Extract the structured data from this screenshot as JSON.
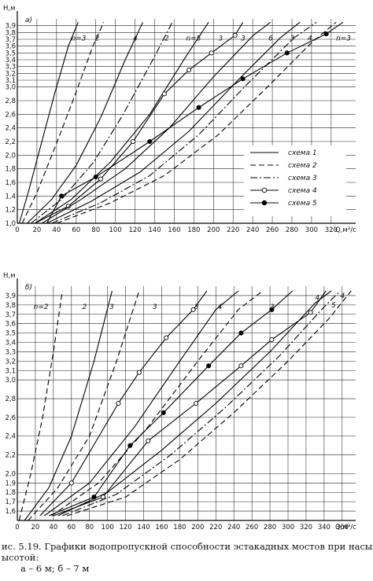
{
  "caption": {
    "line1": "ис. 5.19. Графики водопропускной способности эстакадных мостов при насыпях",
    "line2": "ысотой:",
    "line3": "a – 6 м; б – 7 м"
  },
  "chart_data": [
    {
      "type": "line",
      "panel_label": "а)",
      "ylabel": "H,м",
      "xlabel": "Q,м³/с",
      "xlim": [
        0,
        345
      ],
      "ylim": [
        1.0,
        4.0
      ],
      "x_ticks": [
        0,
        20,
        40,
        60,
        80,
        100,
        120,
        140,
        160,
        180,
        200,
        220,
        240,
        260,
        280,
        300,
        320
      ],
      "y_ticks": [
        1.0,
        1.2,
        1.4,
        1.6,
        1.8,
        2.0,
        2.2,
        2.4,
        2.6,
        2.8,
        3.0,
        3.1,
        3.2,
        3.3,
        3.4,
        3.5,
        3.6,
        3.7,
        3.8,
        3.9
      ],
      "grid": true,
      "legend_position": "right-middle",
      "legend": [
        {
          "label": "схема 1",
          "style": "solid",
          "marker": "none"
        },
        {
          "label": "схема 2",
          "style": "dashed",
          "marker": "none"
        },
        {
          "label": "схема 3",
          "style": "dashdot",
          "marker": "none"
        },
        {
          "label": "схема 4",
          "style": "solid",
          "marker": "open-circle"
        },
        {
          "label": "схема 5",
          "style": "solid",
          "marker": "filled-circle"
        }
      ],
      "series": [
        {
          "name": "n=3",
          "scheme": 1,
          "label_at": [
            55,
            3.72
          ],
          "x": [
            2,
            12,
            25,
            38,
            52,
            62
          ],
          "y": [
            1.0,
            1.5,
            2.2,
            2.9,
            3.6,
            3.95
          ]
        },
        {
          "name": "2",
          "scheme": 2,
          "label_at": [
            79,
            3.72
          ],
          "x": [
            5,
            20,
            38,
            58,
            77,
            88
          ],
          "y": [
            1.0,
            1.45,
            2.1,
            2.85,
            3.6,
            3.95
          ]
        },
        {
          "name": "4",
          "scheme": 1,
          "label_at": [
            118,
            3.72
          ],
          "x": [
            10,
            35,
            60,
            85,
            110,
            128
          ],
          "y": [
            1.0,
            1.35,
            1.85,
            2.55,
            3.4,
            3.95
          ]
        },
        {
          "name": "2",
          "scheme": 3,
          "label_at": [
            150,
            3.72
          ],
          "x": [
            14,
            45,
            78,
            108,
            140,
            158
          ],
          "y": [
            1.0,
            1.35,
            1.9,
            2.6,
            3.45,
            3.95
          ]
        },
        {
          "name": "n=5",
          "scheme": 1,
          "label_at": [
            172,
            3.72
          ],
          "x": [
            18,
            55,
            95,
            135,
            172,
            195
          ],
          "y": [
            1.0,
            1.35,
            1.9,
            2.6,
            3.45,
            3.95
          ]
        },
        {
          "name": "3",
          "scheme": 4,
          "label_at": [
            205,
            3.72
          ],
          "x": [
            18,
            52,
            85,
            118,
            150,
            175,
            198,
            222,
            230
          ],
          "y": [
            1.0,
            1.25,
            1.65,
            2.2,
            2.9,
            3.25,
            3.5,
            3.76,
            3.95
          ]
        },
        {
          "name": "3",
          "scheme": 1,
          "label_at": [
            228,
            3.72
          ],
          "x": [
            25,
            65,
            110,
            155,
            200,
            240,
            258
          ],
          "y": [
            1.0,
            1.35,
            1.8,
            2.4,
            3.15,
            3.75,
            3.95
          ]
        },
        {
          "name": "6",
          "scheme": 1,
          "label_at": [
            256,
            3.72
          ],
          "x": [
            30,
            75,
            125,
            175,
            225,
            268,
            288
          ],
          "y": [
            1.0,
            1.32,
            1.75,
            2.35,
            3.1,
            3.72,
            3.95
          ]
        },
        {
          "name": "3",
          "scheme": 3,
          "label_at": [
            278,
            3.72
          ],
          "x": [
            35,
            85,
            135,
            185,
            235,
            282,
            305
          ],
          "y": [
            1.0,
            1.3,
            1.7,
            2.3,
            3.05,
            3.72,
            3.95
          ]
        },
        {
          "name": "4",
          "scheme": 2,
          "label_at": [
            296,
            3.72
          ],
          "x": [
            40,
            95,
            150,
            205,
            255,
            300,
            325
          ],
          "y": [
            1.0,
            1.3,
            1.7,
            2.3,
            3.0,
            3.65,
            3.95
          ]
        },
        {
          "name": "n=3",
          "scheme": 5,
          "label_at": [
            325,
            3.72
          ],
          "x": [
            30,
            45,
            80,
            135,
            185,
            230,
            275,
            315,
            332
          ],
          "y": [
            1.0,
            1.4,
            1.68,
            2.2,
            2.7,
            3.12,
            3.5,
            3.78,
            3.95
          ]
        }
      ]
    },
    {
      "type": "line",
      "panel_label": "б)",
      "ylabel": "H,м",
      "xlabel": "Q,м³/с",
      "xlim": [
        0,
        375
      ],
      "ylim": [
        1.5,
        4.0
      ],
      "x_ticks": [
        0,
        20,
        40,
        60,
        80,
        100,
        120,
        140,
        160,
        180,
        200,
        220,
        240,
        260,
        280,
        300,
        320,
        340,
        360
      ],
      "y_ticks": [
        1.6,
        1.7,
        1.8,
        1.9,
        2.0,
        2.2,
        2.4,
        2.6,
        2.8,
        3.0,
        3.1,
        3.2,
        3.3,
        3.4,
        3.5,
        3.6,
        3.7,
        3.8,
        3.9
      ],
      "grid": true,
      "series": [
        {
          "name": "n=2",
          "scheme": 2,
          "label_at": [
            18,
            3.78
          ],
          "x": [
            2,
            15,
            28,
            40,
            50
          ],
          "y": [
            1.5,
            2.0,
            2.6,
            3.3,
            3.95
          ]
        },
        {
          "name": "2",
          "scheme": 1,
          "label_at": [
            72,
            3.78
          ],
          "x": [
            8,
            35,
            60,
            85,
            105
          ],
          "y": [
            1.5,
            1.85,
            2.4,
            3.2,
            3.95
          ]
        },
        {
          "name": "3",
          "scheme": 2,
          "label_at": [
            102,
            3.78
          ],
          "x": [
            12,
            45,
            80,
            110,
            135
          ],
          "y": [
            1.5,
            1.85,
            2.4,
            3.2,
            3.95
          ]
        },
        {
          "name": "3",
          "scheme": 4,
          "label_at": [
            150,
            3.78
          ],
          "x": [
            25,
            60,
            112,
            135,
            165,
            195,
            210
          ],
          "y": [
            1.55,
            1.9,
            2.75,
            3.08,
            3.45,
            3.75,
            3.95
          ]
        },
        {
          "name": "3",
          "scheme": 1,
          "label_at": [
            196,
            3.78
          ],
          "x": [
            30,
            80,
            130,
            180,
            220,
            245
          ],
          "y": [
            1.55,
            1.9,
            2.5,
            3.2,
            3.75,
            3.95
          ]
        },
        {
          "name": "4",
          "scheme": 2,
          "label_at": [
            222,
            3.78
          ],
          "x": [
            38,
            90,
            145,
            200,
            245,
            272
          ],
          "y": [
            1.55,
            1.9,
            2.5,
            3.2,
            3.75,
            3.95
          ]
        },
        {
          "name": "3",
          "scheme": 5,
          "label_at": [
            280,
            3.78
          ],
          "x": [
            35,
            85,
            125,
            162,
            212,
            248,
            282,
            305
          ],
          "y": [
            1.55,
            1.75,
            2.3,
            2.65,
            3.15,
            3.5,
            3.75,
            3.95
          ]
        },
        {
          "name": "3",
          "scheme": 4,
          "label_at": [
            0,
            0
          ],
          "x": [
            40,
            95,
            145,
            198,
            248,
            282,
            325,
            342
          ],
          "y": [
            1.55,
            1.75,
            2.35,
            2.75,
            3.15,
            3.43,
            3.72,
            3.95
          ]
        },
        {
          "name": "4",
          "scheme": 1,
          "label_at": [
            330,
            3.88
          ],
          "x": [
            45,
            100,
            160,
            220,
            280,
            330,
            348
          ],
          "y": [
            1.55,
            1.8,
            2.25,
            2.75,
            3.3,
            3.82,
            3.95
          ]
        },
        {
          "name": "5",
          "scheme": 3,
          "label_at": [
            348,
            3.8
          ],
          "x": [
            50,
            110,
            170,
            230,
            290,
            340,
            358
          ],
          "y": [
            1.55,
            1.78,
            2.2,
            2.7,
            3.25,
            3.78,
            3.95
          ]
        },
        {
          "name": "4",
          "scheme": 2,
          "label_at": [
            358,
            3.9
          ],
          "x": [
            55,
            120,
            180,
            240,
            300,
            345,
            370
          ],
          "y": [
            1.55,
            1.75,
            2.15,
            2.65,
            3.2,
            3.65,
            3.95
          ]
        }
      ]
    }
  ]
}
